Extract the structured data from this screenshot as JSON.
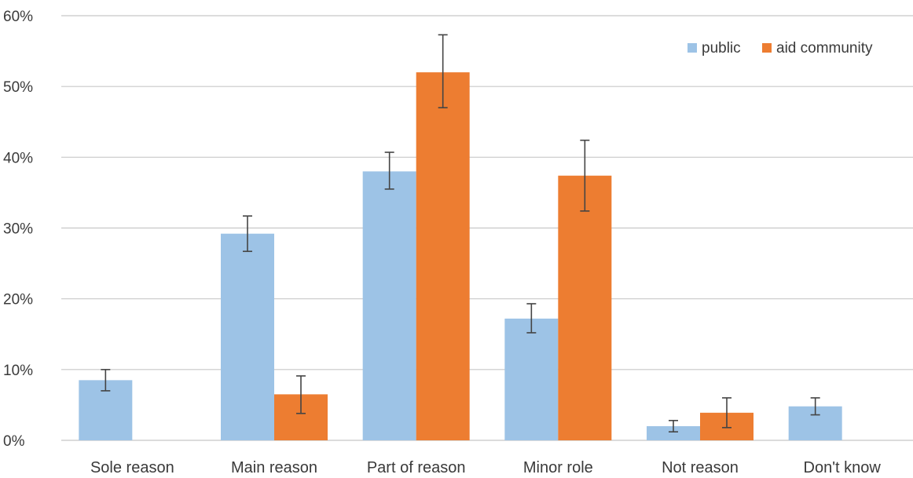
{
  "chart_data": {
    "type": "bar",
    "title": "",
    "xlabel": "",
    "ylabel": "",
    "categories": [
      "Sole reason",
      "Main reason",
      "Part of reason",
      "Minor role",
      "Not reason",
      "Don't know"
    ],
    "series": [
      {
        "name": "public",
        "color": "#9dc3e6",
        "values": [
          8.5,
          29.2,
          38.0,
          17.2,
          2.0,
          4.8
        ],
        "error_low": [
          7.0,
          26.7,
          35.5,
          15.2,
          1.2,
          3.6
        ],
        "error_high": [
          10.0,
          31.7,
          40.7,
          19.3,
          2.8,
          6.0
        ]
      },
      {
        "name": "aid community",
        "color": "#ed7d31",
        "values": [
          null,
          6.5,
          52.0,
          37.4,
          3.9,
          null
        ],
        "error_low": [
          null,
          3.8,
          47.0,
          32.4,
          1.8,
          null
        ],
        "error_high": [
          null,
          9.1,
          57.3,
          42.4,
          6.0,
          null
        ]
      }
    ],
    "ylim": [
      0,
      60
    ],
    "yticks": [
      0,
      10,
      20,
      30,
      40,
      50,
      60
    ],
    "ytick_labels": [
      "0%",
      "10%",
      "20%",
      "30%",
      "40%",
      "50%",
      "60%"
    ],
    "grid": true,
    "legend_position": "top-right"
  }
}
